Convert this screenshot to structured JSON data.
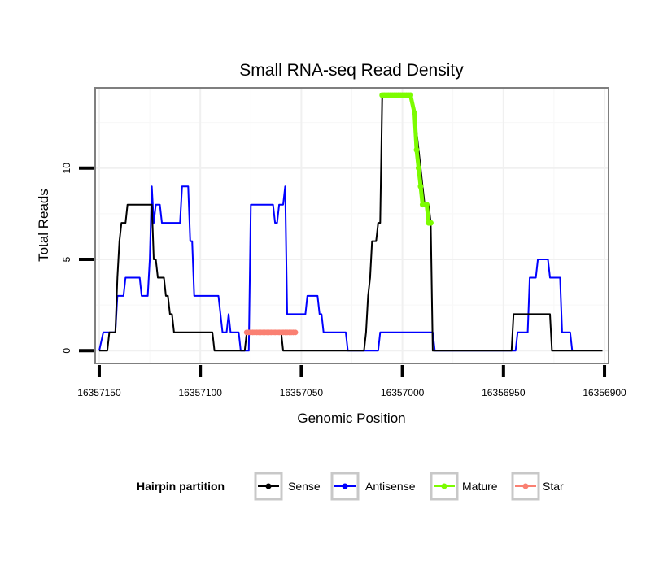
{
  "chart_data": {
    "type": "line",
    "title": "Small RNA-seq Read Density",
    "xlabel": "Genomic Position",
    "ylabel": "Total Reads",
    "xlim": [
      16357152,
      16356898
    ],
    "ylim": [
      -0.7,
      14.4
    ],
    "x_reversed": true,
    "xticks": [
      16357150,
      16357100,
      16357050,
      16357000,
      16356950,
      16356900
    ],
    "xtick_labels": [
      "16357150",
      "16357100",
      "16357050",
      "16357000",
      "16356950",
      "16356900"
    ],
    "yticks": [
      0,
      5,
      10
    ],
    "ytick_labels": [
      "0",
      "5",
      "10"
    ],
    "grid": true,
    "legend": {
      "title": "Hairpin partition",
      "position": "bottom",
      "entries": [
        "Sense",
        "Antisense",
        "Mature",
        "Star"
      ]
    },
    "series": [
      {
        "name": "Sense",
        "color": "#000000",
        "style": "line",
        "points": [
          [
            16357150,
            0
          ],
          [
            16357146,
            0
          ],
          [
            16357145,
            1
          ],
          [
            16357142,
            1
          ],
          [
            16357141,
            4
          ],
          [
            16357140,
            6
          ],
          [
            16357139,
            7
          ],
          [
            16357137,
            7
          ],
          [
            16357136,
            8
          ],
          [
            16357124,
            8
          ],
          [
            16357123,
            5
          ],
          [
            16357122,
            5
          ],
          [
            16357121,
            4
          ],
          [
            16357118,
            4
          ],
          [
            16357117,
            3
          ],
          [
            16357116,
            3
          ],
          [
            16357115,
            2
          ],
          [
            16357114,
            2
          ],
          [
            16357113,
            1
          ],
          [
            16357094,
            1
          ],
          [
            16357093,
            0
          ],
          [
            16357078,
            0
          ],
          [
            16357077,
            1
          ],
          [
            16357060,
            1
          ],
          [
            16357059,
            0
          ],
          [
            16357019,
            0
          ],
          [
            16357018,
            1
          ],
          [
            16357017,
            3
          ],
          [
            16357016,
            4
          ],
          [
            16357015,
            6
          ],
          [
            16357013,
            6
          ],
          [
            16357012,
            7
          ],
          [
            16357011,
            7
          ],
          [
            16357010,
            14
          ],
          [
            16356996,
            14
          ],
          [
            16356994,
            13
          ],
          [
            16356992,
            11
          ],
          [
            16356991,
            10
          ],
          [
            16356990,
            9
          ],
          [
            16356989,
            8
          ],
          [
            16356987,
            8
          ],
          [
            16356986,
            7
          ],
          [
            16356985,
            0
          ],
          [
            16356946,
            0
          ],
          [
            16356945,
            2
          ],
          [
            16356938,
            2
          ],
          [
            16356927,
            2
          ],
          [
            16356926,
            0
          ],
          [
            16356901,
            0
          ]
        ]
      },
      {
        "name": "Antisense",
        "color": "#0000ff",
        "style": "line",
        "points": [
          [
            16357150,
            0
          ],
          [
            16357148,
            1
          ],
          [
            16357142,
            1
          ],
          [
            16357141,
            3
          ],
          [
            16357138,
            3
          ],
          [
            16357137,
            4
          ],
          [
            16357130,
            4
          ],
          [
            16357129,
            3
          ],
          [
            16357126,
            3
          ],
          [
            16357125,
            5
          ],
          [
            16357124,
            9
          ],
          [
            16357123,
            7
          ],
          [
            16357122,
            8
          ],
          [
            16357120,
            8
          ],
          [
            16357119,
            7
          ],
          [
            16357110,
            7
          ],
          [
            16357109,
            9
          ],
          [
            16357106,
            9
          ],
          [
            16357105,
            6
          ],
          [
            16357104,
            6
          ],
          [
            16357103,
            3
          ],
          [
            16357091,
            3
          ],
          [
            16357089,
            1
          ],
          [
            16357087,
            1
          ],
          [
            16357086,
            2
          ],
          [
            16357085,
            1
          ],
          [
            16357081,
            1
          ],
          [
            16357080,
            0
          ],
          [
            16357076,
            0
          ],
          [
            16357075,
            8
          ],
          [
            16357064,
            8
          ],
          [
            16357063,
            7
          ],
          [
            16357062,
            7
          ],
          [
            16357061,
            8
          ],
          [
            16357059,
            8
          ],
          [
            16357058,
            9
          ],
          [
            16357057,
            2
          ],
          [
            16357048,
            2
          ],
          [
            16357047,
            3
          ],
          [
            16357042,
            3
          ],
          [
            16357041,
            2
          ],
          [
            16357040,
            2
          ],
          [
            16357039,
            1
          ],
          [
            16357028,
            1
          ],
          [
            16357027,
            0
          ],
          [
            16357012,
            0
          ],
          [
            16357011,
            1
          ],
          [
            16356985,
            1
          ],
          [
            16356984,
            0
          ],
          [
            16356944,
            0
          ],
          [
            16356943,
            1
          ],
          [
            16356938,
            1
          ],
          [
            16356937,
            4
          ],
          [
            16356934,
            4
          ],
          [
            16356933,
            5
          ],
          [
            16356928,
            5
          ],
          [
            16356927,
            4
          ],
          [
            16356922,
            4
          ],
          [
            16356921,
            1
          ],
          [
            16356917,
            1
          ],
          [
            16356916,
            0
          ]
        ]
      },
      {
        "name": "Mature",
        "color": "#7cfc00",
        "style": "line+points",
        "points": [
          [
            16357010,
            14
          ],
          [
            16357009,
            14
          ],
          [
            16357008,
            14
          ],
          [
            16357007,
            14
          ],
          [
            16357006,
            14
          ],
          [
            16357005,
            14
          ],
          [
            16357004,
            14
          ],
          [
            16357003,
            14
          ],
          [
            16357002,
            14
          ],
          [
            16357001,
            14
          ],
          [
            16357000,
            14
          ],
          [
            16356999,
            14
          ],
          [
            16356998,
            14
          ],
          [
            16356997,
            14
          ],
          [
            16356996,
            14
          ],
          [
            16356994,
            13
          ],
          [
            16356993,
            11
          ],
          [
            16356992,
            10
          ],
          [
            16356991,
            9
          ],
          [
            16356990,
            8
          ],
          [
            16356989,
            8
          ],
          [
            16356988,
            8
          ],
          [
            16356987,
            7
          ],
          [
            16356986,
            7
          ]
        ]
      },
      {
        "name": "Star",
        "color": "#fa8072",
        "style": "line+points",
        "points": [
          [
            16357077,
            1
          ],
          [
            16357076,
            1
          ],
          [
            16357075,
            1
          ],
          [
            16357074,
            1
          ],
          [
            16357073,
            1
          ],
          [
            16357072,
            1
          ],
          [
            16357071,
            1
          ],
          [
            16357070,
            1
          ],
          [
            16357069,
            1
          ],
          [
            16357068,
            1
          ],
          [
            16357067,
            1
          ],
          [
            16357066,
            1
          ],
          [
            16357065,
            1
          ],
          [
            16357064,
            1
          ],
          [
            16357063,
            1
          ],
          [
            16357062,
            1
          ],
          [
            16357061,
            1
          ],
          [
            16357060,
            1
          ],
          [
            16357059,
            1
          ],
          [
            16357058,
            1
          ],
          [
            16357057,
            1
          ],
          [
            16357056,
            1
          ],
          [
            16357055,
            1
          ],
          [
            16357054,
            1
          ],
          [
            16357053,
            1
          ]
        ]
      }
    ]
  }
}
